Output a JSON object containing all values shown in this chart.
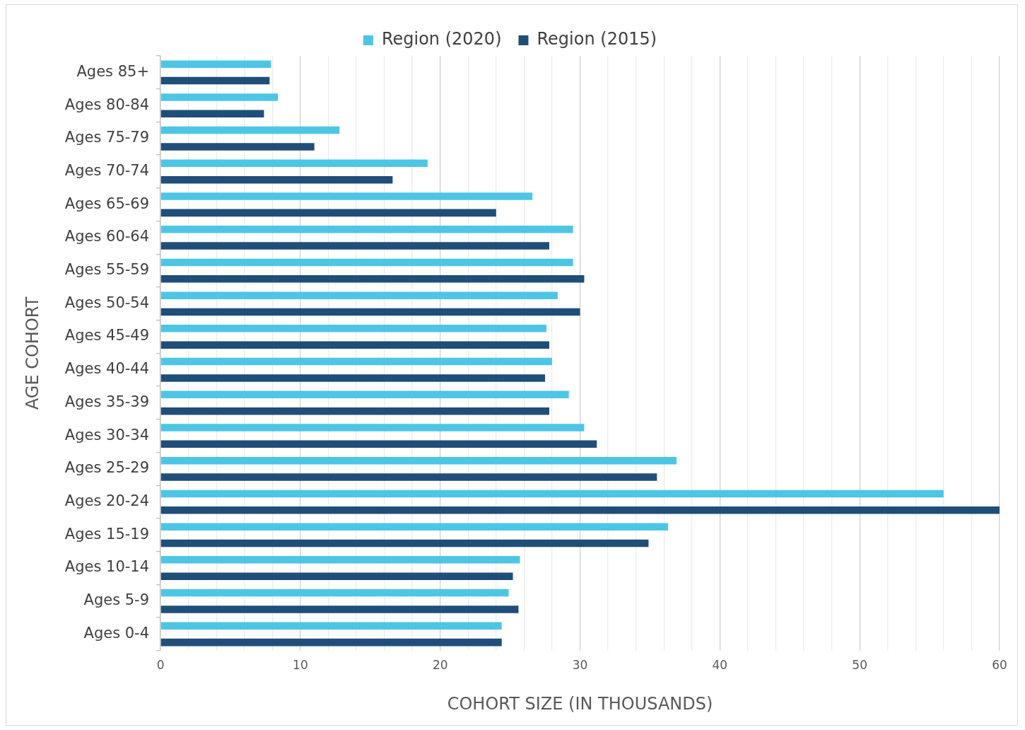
{
  "chart_data": {
    "type": "bar",
    "orientation": "horizontal",
    "xlabel": "COHORT SIZE (IN THOUSANDS)",
    "ylabel": "AGE COHORT",
    "categories": [
      "Ages 85+",
      "Ages 80-84",
      "Ages 75-79",
      "Ages 70-74",
      "Ages 65-69",
      "Ages 60-64",
      "Ages 55-59",
      "Ages 50-54",
      "Ages 45-49",
      "Ages 40-44",
      "Ages 35-39",
      "Ages 30-34",
      "Ages 25-29",
      "Ages 20-24",
      "Ages 15-19",
      "Ages 10-14",
      "Ages 5-9",
      "Ages 0-4"
    ],
    "series": [
      {
        "name": "Region (2020)",
        "color": "#4dc6e6",
        "values": [
          7.9,
          8.4,
          12.8,
          19.1,
          26.6,
          29.5,
          29.5,
          28.4,
          27.6,
          28.0,
          29.2,
          30.3,
          36.9,
          56.0,
          36.3,
          25.7,
          24.9,
          24.4
        ]
      },
      {
        "name": "Region (2015)",
        "color": "#1f4e79",
        "values": [
          7.8,
          7.4,
          11.0,
          16.6,
          24.0,
          27.8,
          30.3,
          30.0,
          27.8,
          27.5,
          27.8,
          31.2,
          35.5,
          60.0,
          34.9,
          25.2,
          25.6,
          24.4
        ]
      }
    ],
    "xlim": [
      0,
      60
    ],
    "xticks": [
      0,
      {
        "value": 2,
        "label": null
      },
      {
        "value": 4,
        "label": null
      },
      {
        "value": 6,
        "label": null
      },
      {
        "value": 8,
        "label": null
      },
      10,
      {
        "value": 12,
        "label": null
      },
      {
        "value": 14,
        "label": null
      },
      {
        "value": 16,
        "label": null
      },
      {
        "value": 18,
        "label": null
      },
      20,
      {
        "value": 22,
        "label": null
      },
      {
        "value": 24,
        "label": null
      },
      {
        "value": 26,
        "label": null
      },
      {
        "value": 28,
        "label": null
      },
      30,
      {
        "value": 32,
        "label": null
      },
      {
        "value": 34,
        "label": null
      },
      {
        "value": 36,
        "label": null
      },
      {
        "value": 38,
        "label": null
      },
      40,
      {
        "value": 42,
        "label": null
      },
      {
        "value": 44,
        "label": null
      },
      {
        "value": 46,
        "label": null
      },
      {
        "value": 48,
        "label": null
      },
      50,
      {
        "value": 52,
        "label": null
      },
      {
        "value": 54,
        "label": null
      },
      {
        "value": 56,
        "label": null
      },
      {
        "value": 58,
        "label": null
      },
      60
    ],
    "grid": "x",
    "legend": "top"
  }
}
